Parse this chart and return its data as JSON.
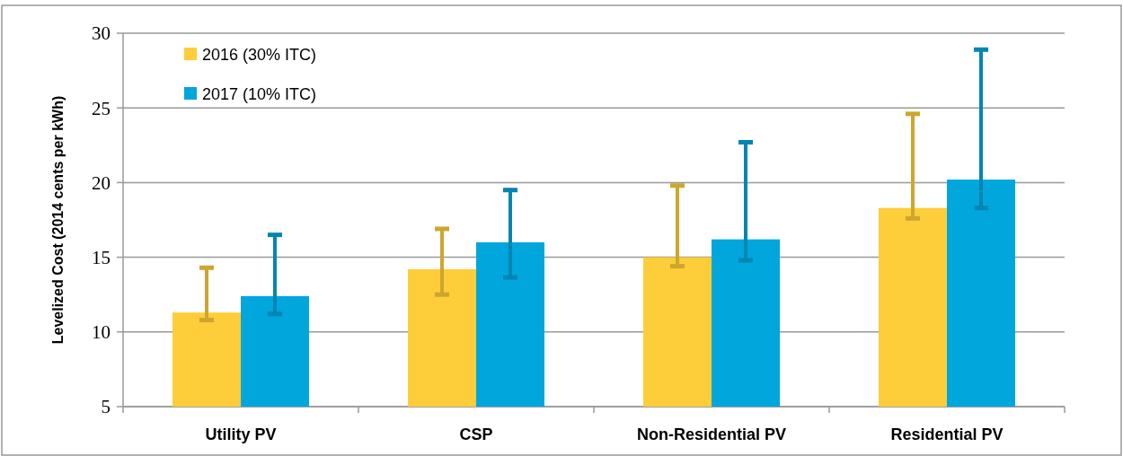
{
  "chart_data": {
    "type": "bar",
    "ylabel": "Levelized Cost (2014 cents per kWh)",
    "categories": [
      "Utility PV",
      "CSP",
      "Non-Residential PV",
      "Residential PV"
    ],
    "series": [
      {
        "name": "2016 (30% ITC)",
        "color": "#fecd3a",
        "values": [
          11.3,
          14.2,
          15.0,
          18.3
        ],
        "errors": [
          [
            10.8,
            14.3
          ],
          [
            12.5,
            16.9
          ],
          [
            14.4,
            19.8
          ],
          [
            17.6,
            24.6
          ]
        ]
      },
      {
        "name": "2017 (10% ITC)",
        "color": "#00a6dc",
        "values": [
          12.4,
          16.0,
          16.2,
          20.2
        ],
        "errors": [
          [
            11.2,
            16.5
          ],
          [
            13.65,
            19.5
          ],
          [
            14.8,
            22.7
          ],
          [
            18.3,
            28.9
          ]
        ]
      }
    ],
    "ylim": [
      5,
      30
    ],
    "yticks": [
      5,
      10,
      15,
      20,
      25,
      30
    ],
    "grid": "y",
    "legend": "top left"
  }
}
